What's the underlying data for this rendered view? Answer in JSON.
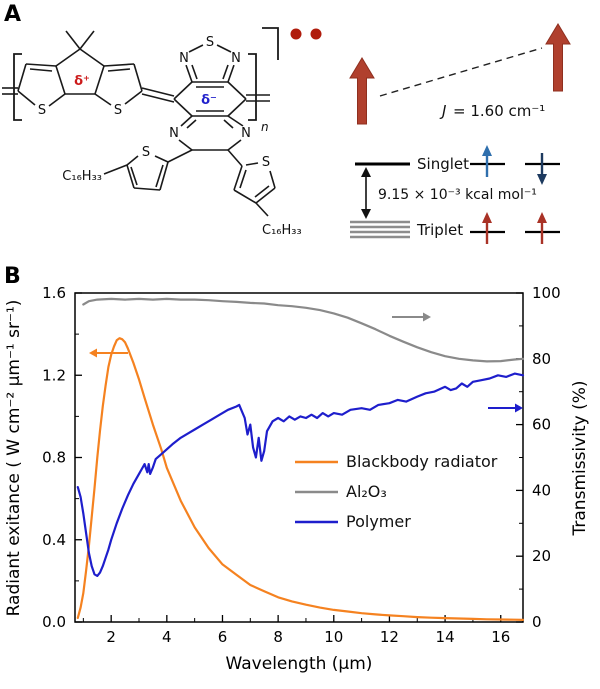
{
  "panelA": {
    "label": "A",
    "molecule": {
      "atom_s": "S",
      "atom_n": "N",
      "delta_plus": "δ⁺",
      "delta_minus": "δ⁻",
      "chain_left": "C₁₆H₃₃",
      "chain_right": "C₁₆H₃₃",
      "repeat_sub": "n",
      "radical_dot_color": "#b01c0c"
    },
    "spin": {
      "j_symbol": "J",
      "j_value": "= 1.60 cm⁻¹",
      "gap_label": "9.15 × 10⁻³ kcal mol⁻¹",
      "singlet_label": "Singlet",
      "triplet_label": "Triplet",
      "big_arrow_color": "#b0402e",
      "up_spin_color": "#2f6fad",
      "down_spin_color": "#1d3a5f",
      "triplet_spin_color": "#a93226"
    }
  },
  "panelB": {
    "label": "B"
  },
  "chart_data": {
    "type": "line",
    "title": "",
    "xlabel": "Wavelength (μm)",
    "ylabel_left": "Radiant exitance ( W cm⁻² μm⁻¹ sr⁻¹)",
    "ylabel_right": "Transmissivity (%)",
    "xlim": [
      0.7,
      16.8
    ],
    "ylim_left": [
      0,
      1.6
    ],
    "ylim_right": [
      0,
      100
    ],
    "xticks": [
      2,
      4,
      6,
      8,
      10,
      12,
      14,
      16
    ],
    "xtick_labels": [
      "2",
      "4",
      "6",
      "8",
      "10",
      "12",
      "14",
      "16"
    ],
    "ytick_left_values": [
      0,
      0.4,
      0.8,
      1.2,
      1.6
    ],
    "ytick_left_labels": [
      "0.0",
      "0.4",
      "0.8",
      "1.2",
      "1.6"
    ],
    "ytick_right_values": [
      0,
      20,
      40,
      60,
      80,
      100
    ],
    "ytick_right_labels": [
      "0",
      "20",
      "40",
      "60",
      "80",
      "100"
    ],
    "grid": false,
    "legend_position": "inside-center-right",
    "series": [
      {
        "id": "blackbody",
        "name": "Blackbody radiator",
        "axis": "left",
        "color": "#F58220",
        "points": [
          [
            0.8,
            0.02
          ],
          [
            0.9,
            0.07
          ],
          [
            1.0,
            0.14
          ],
          [
            1.1,
            0.25
          ],
          [
            1.2,
            0.37
          ],
          [
            1.3,
            0.51
          ],
          [
            1.4,
            0.65
          ],
          [
            1.5,
            0.8
          ],
          [
            1.6,
            0.93
          ],
          [
            1.7,
            1.05
          ],
          [
            1.8,
            1.15
          ],
          [
            1.9,
            1.24
          ],
          [
            2.0,
            1.3
          ],
          [
            2.1,
            1.34
          ],
          [
            2.2,
            1.37
          ],
          [
            2.3,
            1.38
          ],
          [
            2.4,
            1.375
          ],
          [
            2.5,
            1.36
          ],
          [
            2.6,
            1.33
          ],
          [
            2.8,
            1.26
          ],
          [
            3.0,
            1.18
          ],
          [
            3.2,
            1.09
          ],
          [
            3.5,
            0.96
          ],
          [
            3.8,
            0.84
          ],
          [
            4.0,
            0.75
          ],
          [
            4.5,
            0.59
          ],
          [
            5.0,
            0.46
          ],
          [
            5.5,
            0.36
          ],
          [
            6.0,
            0.28
          ],
          [
            6.5,
            0.23
          ],
          [
            7.0,
            0.18
          ],
          [
            7.5,
            0.15
          ],
          [
            8.0,
            0.12
          ],
          [
            8.5,
            0.1
          ],
          [
            9.0,
            0.084
          ],
          [
            9.5,
            0.07
          ],
          [
            10.0,
            0.059
          ],
          [
            10.5,
            0.051
          ],
          [
            11.0,
            0.043
          ],
          [
            11.5,
            0.037
          ],
          [
            12.0,
            0.032
          ],
          [
            12.5,
            0.028
          ],
          [
            13.0,
            0.024
          ],
          [
            13.5,
            0.021
          ],
          [
            14.0,
            0.019
          ],
          [
            14.5,
            0.017
          ],
          [
            15.0,
            0.015
          ],
          [
            15.5,
            0.013
          ],
          [
            16.0,
            0.012
          ],
          [
            16.5,
            0.011
          ],
          [
            16.8,
            0.01
          ]
        ]
      },
      {
        "id": "al2o3",
        "name": "Al₂O₃",
        "axis": "right",
        "color": "#8a8a8a",
        "points": [
          [
            1.0,
            96.5
          ],
          [
            1.2,
            97.5
          ],
          [
            1.5,
            98
          ],
          [
            2.0,
            98.2
          ],
          [
            2.5,
            98
          ],
          [
            3.0,
            98.2
          ],
          [
            3.5,
            98
          ],
          [
            4.0,
            98.2
          ],
          [
            4.5,
            98
          ],
          [
            5.0,
            98
          ],
          [
            5.5,
            97.8
          ],
          [
            6.0,
            97.5
          ],
          [
            6.5,
            97.3
          ],
          [
            7.0,
            97
          ],
          [
            7.5,
            96.8
          ],
          [
            8.0,
            96.3
          ],
          [
            8.5,
            96
          ],
          [
            9.0,
            95.5
          ],
          [
            9.5,
            94.8
          ],
          [
            10.0,
            93.8
          ],
          [
            10.5,
            92.5
          ],
          [
            11.0,
            90.8
          ],
          [
            11.5,
            89
          ],
          [
            12.0,
            87
          ],
          [
            12.5,
            85.2
          ],
          [
            13.0,
            83.5
          ],
          [
            13.5,
            82
          ],
          [
            14.0,
            80.8
          ],
          [
            14.5,
            80
          ],
          [
            15.0,
            79.5
          ],
          [
            15.5,
            79.2
          ],
          [
            16.0,
            79.3
          ],
          [
            16.5,
            79.8
          ],
          [
            16.8,
            80
          ]
        ]
      },
      {
        "id": "polymer",
        "name": "Polymer",
        "axis": "right",
        "color": "#1E1ECC",
        "points": [
          [
            0.8,
            41
          ],
          [
            0.9,
            38
          ],
          [
            1.0,
            33
          ],
          [
            1.1,
            27
          ],
          [
            1.2,
            21
          ],
          [
            1.3,
            17
          ],
          [
            1.4,
            14.5
          ],
          [
            1.5,
            14
          ],
          [
            1.6,
            15
          ],
          [
            1.7,
            17
          ],
          [
            1.8,
            19.5
          ],
          [
            1.9,
            22
          ],
          [
            2.0,
            25
          ],
          [
            2.2,
            30
          ],
          [
            2.4,
            34.5
          ],
          [
            2.6,
            38.5
          ],
          [
            2.8,
            42
          ],
          [
            3.0,
            45
          ],
          [
            3.1,
            46.5
          ],
          [
            3.2,
            48
          ],
          [
            3.3,
            45.5
          ],
          [
            3.35,
            48
          ],
          [
            3.4,
            45
          ],
          [
            3.5,
            47
          ],
          [
            3.6,
            49.5
          ],
          [
            3.8,
            51
          ],
          [
            4.0,
            52.5
          ],
          [
            4.2,
            54
          ],
          [
            4.5,
            56
          ],
          [
            4.8,
            57.5
          ],
          [
            5.0,
            58.5
          ],
          [
            5.3,
            60
          ],
          [
            5.6,
            61.5
          ],
          [
            5.9,
            63
          ],
          [
            6.2,
            64.5
          ],
          [
            6.5,
            65.5
          ],
          [
            6.6,
            66
          ],
          [
            6.8,
            62
          ],
          [
            6.9,
            57
          ],
          [
            7.0,
            60
          ],
          [
            7.1,
            53
          ],
          [
            7.2,
            50
          ],
          [
            7.3,
            56
          ],
          [
            7.4,
            49
          ],
          [
            7.5,
            52
          ],
          [
            7.6,
            58
          ],
          [
            7.8,
            61
          ],
          [
            8.0,
            62
          ],
          [
            8.2,
            61
          ],
          [
            8.4,
            62.5
          ],
          [
            8.6,
            61.5
          ],
          [
            8.8,
            62.5
          ],
          [
            9.0,
            62
          ],
          [
            9.2,
            63
          ],
          [
            9.4,
            62
          ],
          [
            9.6,
            63.5
          ],
          [
            9.8,
            62.5
          ],
          [
            10.0,
            63.5
          ],
          [
            10.3,
            63
          ],
          [
            10.6,
            64.5
          ],
          [
            11.0,
            65
          ],
          [
            11.3,
            64.5
          ],
          [
            11.6,
            66
          ],
          [
            12.0,
            66.5
          ],
          [
            12.3,
            67.5
          ],
          [
            12.6,
            67
          ],
          [
            13.0,
            68.5
          ],
          [
            13.3,
            69.5
          ],
          [
            13.6,
            70
          ],
          [
            14.0,
            71.5
          ],
          [
            14.2,
            70.5
          ],
          [
            14.4,
            71
          ],
          [
            14.6,
            72.5
          ],
          [
            14.8,
            71.5
          ],
          [
            15.0,
            73
          ],
          [
            15.3,
            73.5
          ],
          [
            15.6,
            74
          ],
          [
            15.9,
            75
          ],
          [
            16.2,
            74.5
          ],
          [
            16.5,
            75.5
          ],
          [
            16.8,
            75
          ]
        ]
      }
    ],
    "axis_arrows": [
      {
        "series": "blackbody",
        "direction": "left"
      },
      {
        "series": "al2o3",
        "direction": "right"
      },
      {
        "series": "polymer",
        "direction": "right"
      }
    ]
  }
}
